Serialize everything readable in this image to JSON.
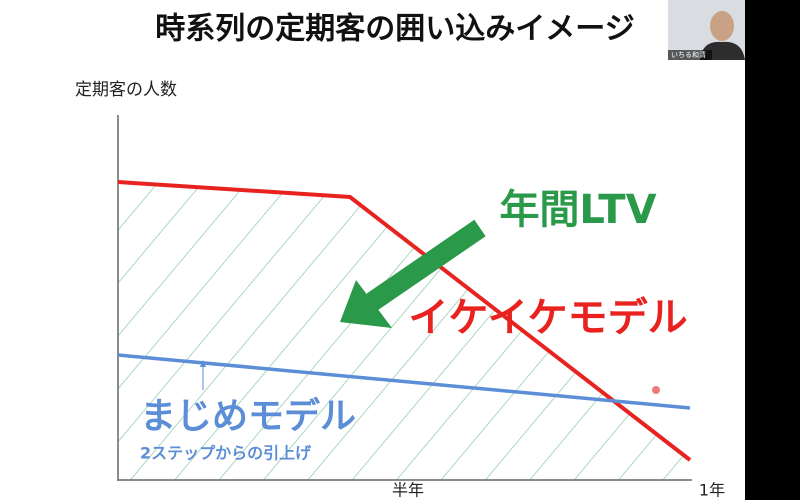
{
  "slide": {
    "title": "時系列の定期客の囲い込みイメージ",
    "y_axis_label": "定期客の人数",
    "x_labels": [
      "半年",
      "1年"
    ],
    "annotations": {
      "ltv": "年間LTV",
      "aggressive": "イケイケモデル",
      "serious": "まじめモデル",
      "serious_note": "2ステップからの引上げ"
    }
  },
  "video": {
    "participant_name": "いちる和清"
  }
}
